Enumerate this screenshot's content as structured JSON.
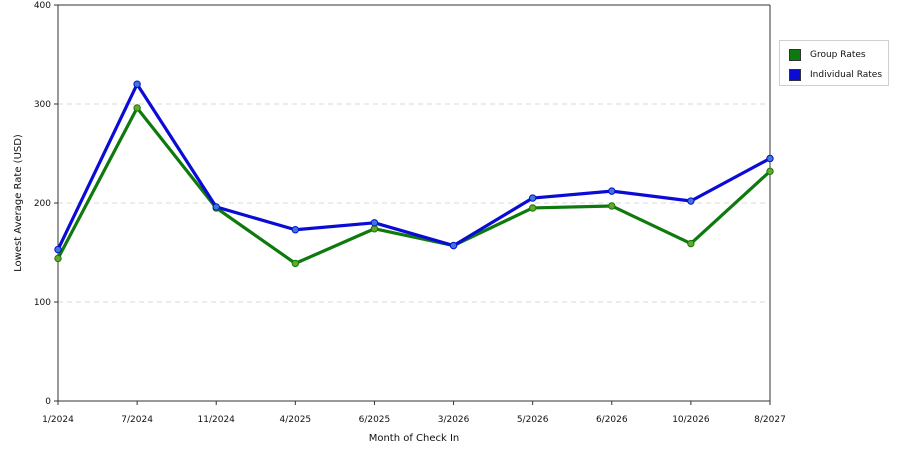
{
  "chart_data": {
    "type": "line",
    "xlabel": "Month of Check In",
    "ylabel": "Lowest Average Rate (USD)",
    "ylim": [
      0,
      400
    ],
    "yticks": [
      "0",
      "100",
      "200",
      "300",
      "400"
    ],
    "categories": [
      "1/2024",
      "7/2024",
      "11/2024",
      "4/2025",
      "6/2025",
      "3/2026",
      "5/2026",
      "6/2026",
      "10/2026",
      "8/2027"
    ],
    "grid": "horizontal dashed",
    "legend_position": "right",
    "series": [
      {
        "name": "Group Rates",
        "color": "#0e7a0e",
        "marker_color": "#6aa52a",
        "values": [
          144,
          296,
          195,
          139,
          174,
          157,
          195,
          197,
          159,
          232
        ]
      },
      {
        "name": "Individual Rates",
        "color": "#0b0bd6",
        "marker_color": "#3a7bd5",
        "values": [
          153,
          320,
          196,
          173,
          180,
          157,
          205,
          212,
          202,
          245
        ]
      }
    ]
  }
}
